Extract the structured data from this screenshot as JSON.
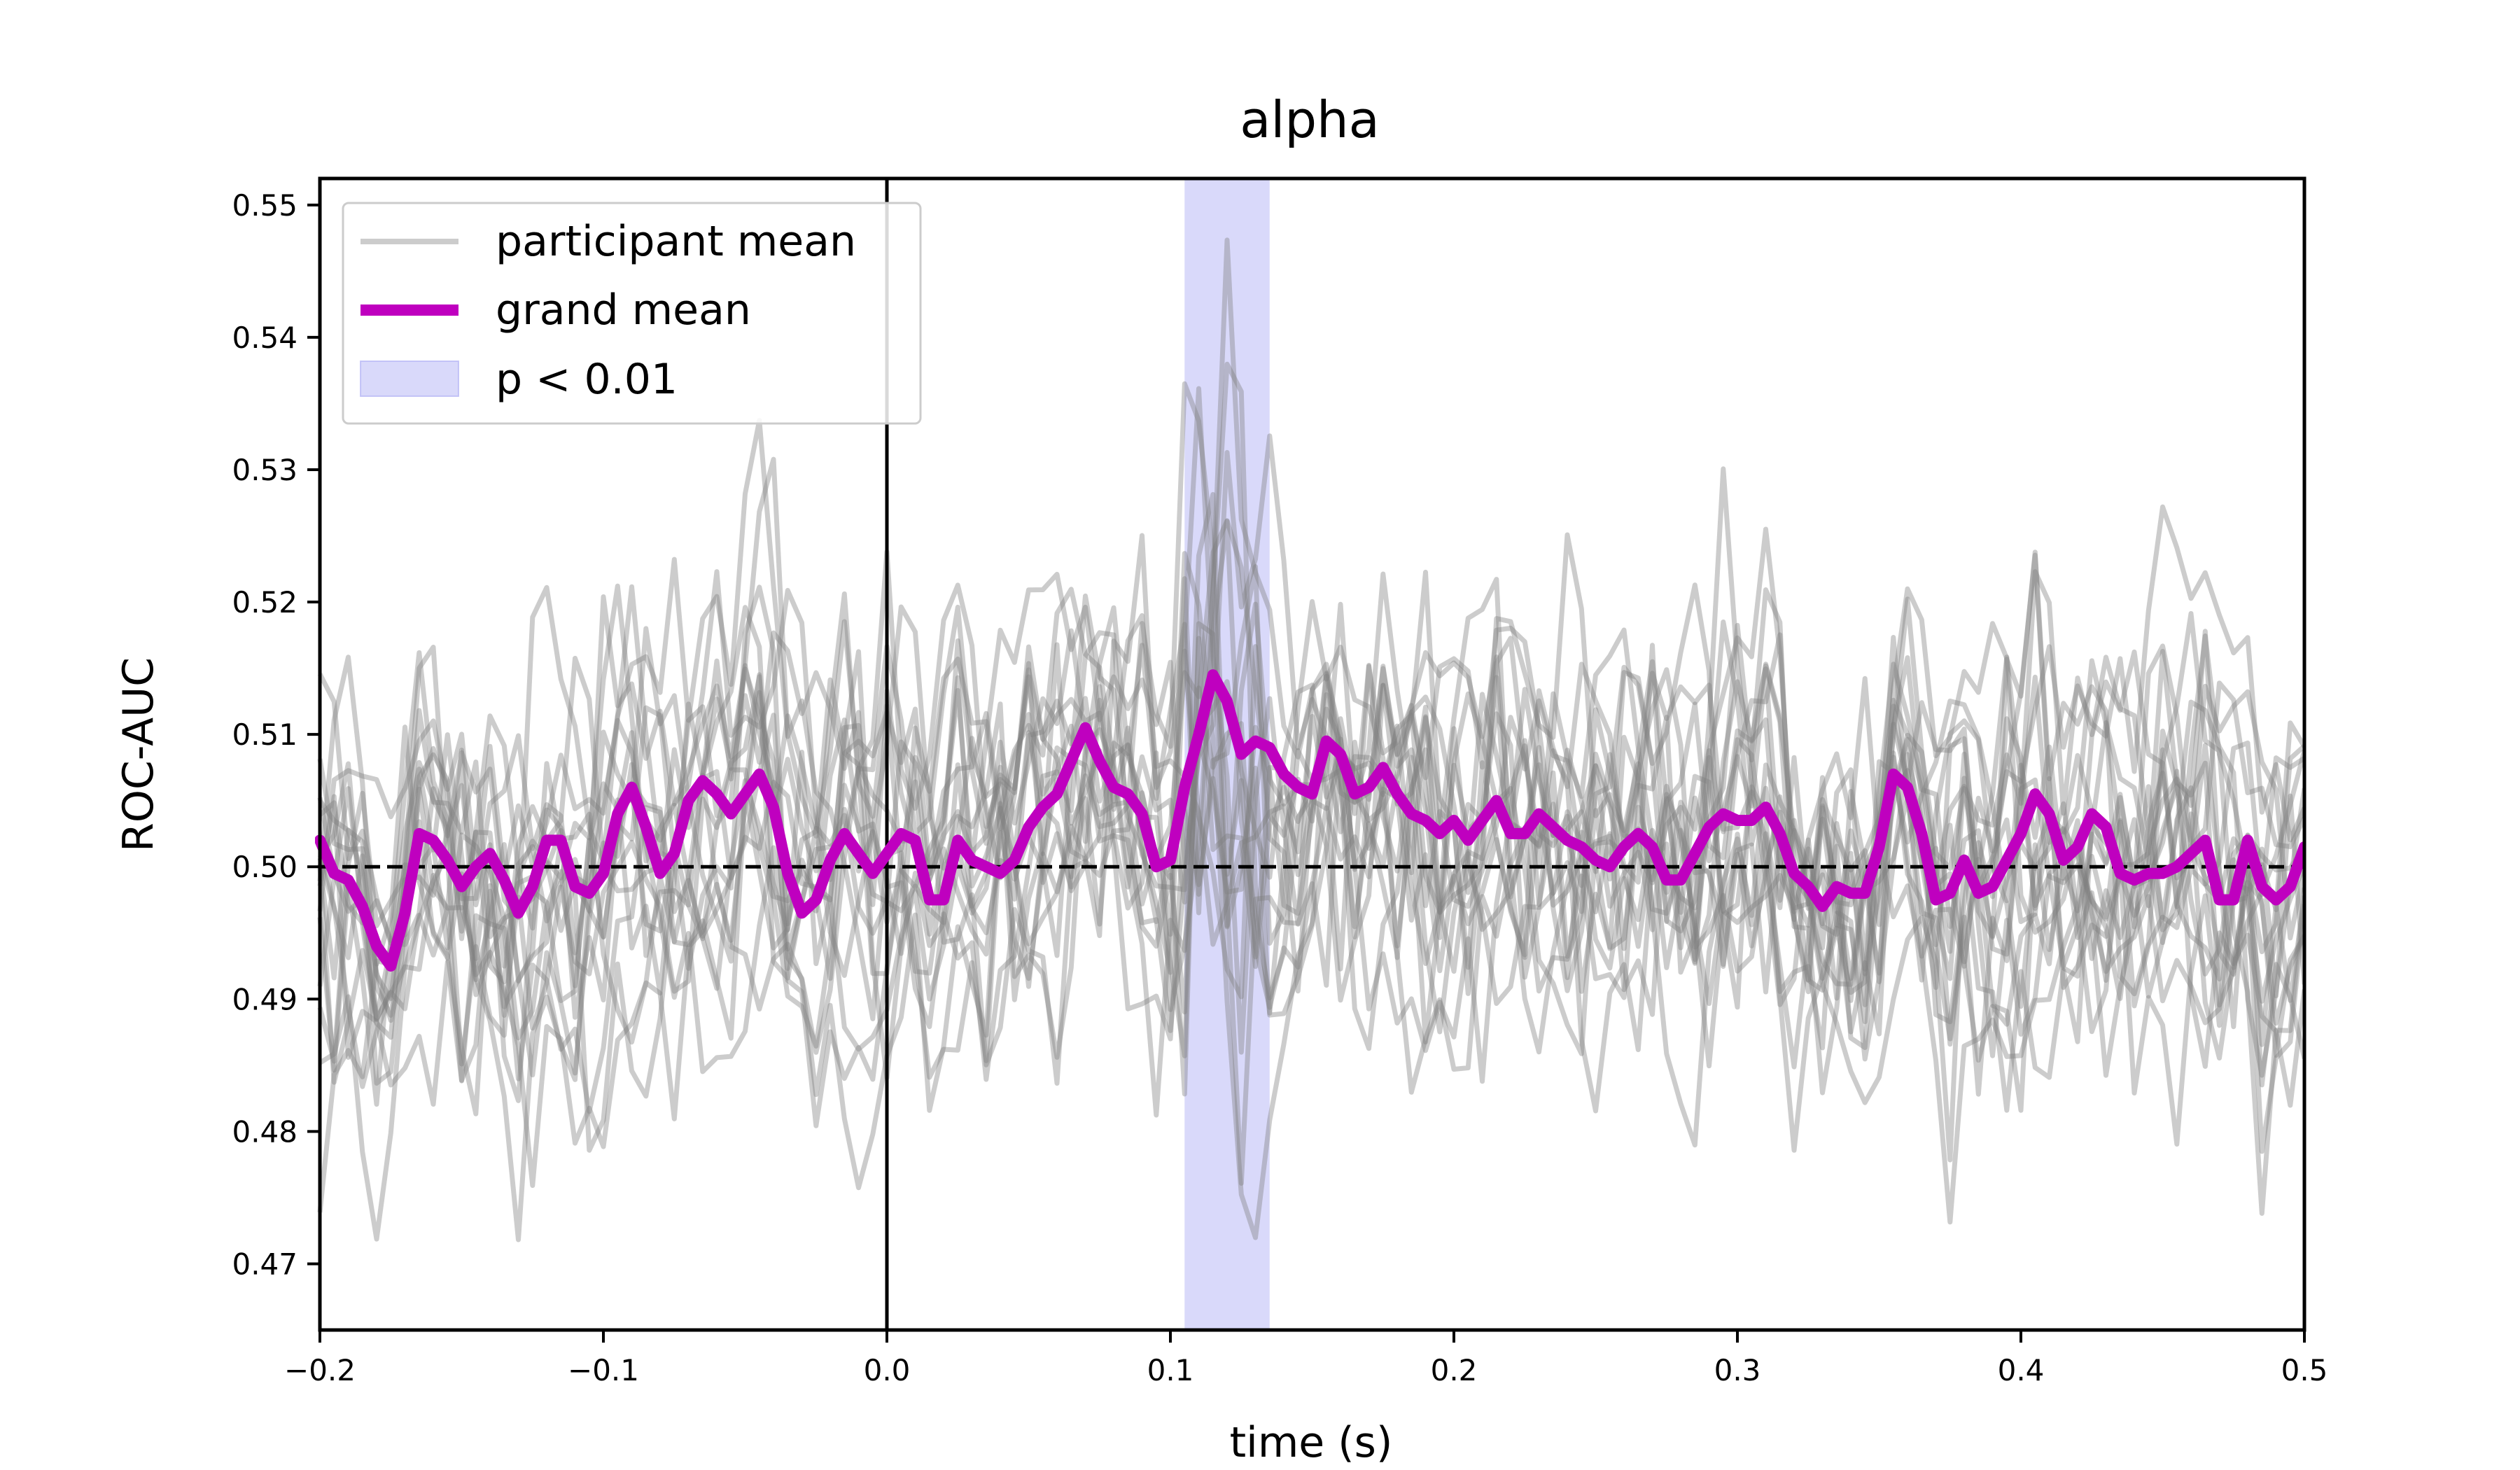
{
  "chart_data": {
    "type": "line",
    "title": "alpha",
    "xlabel": "time (s)",
    "ylabel": "ROC-AUC",
    "xlim": [
      -0.2,
      0.5
    ],
    "ylim": [
      0.465,
      0.552
    ],
    "x_ticks": [
      -0.2,
      -0.1,
      0.0,
      0.1,
      0.2,
      0.3,
      0.4,
      0.5
    ],
    "x_tick_labels": [
      "−0.2",
      "−0.1",
      "0.0",
      "0.1",
      "0.2",
      "0.3",
      "0.4",
      "0.5"
    ],
    "y_ticks": [
      0.47,
      0.48,
      0.49,
      0.5,
      0.51,
      0.52,
      0.53,
      0.54,
      0.55
    ],
    "y_tick_labels": [
      "0.47",
      "0.48",
      "0.49",
      "0.50",
      "0.51",
      "0.52",
      "0.53",
      "0.54",
      "0.55"
    ],
    "chance_level": 0.5,
    "stimulus_onset": 0.0,
    "significant_window": {
      "start": 0.105,
      "end": 0.135,
      "label": "p < 0.01"
    },
    "legend": {
      "location": "upper-left",
      "entries": [
        "participant mean",
        "grand mean",
        "p < 0.01"
      ]
    },
    "colors": {
      "participant": "#808080",
      "grand_mean": "#bf00bf",
      "significance": "#b3b3f5",
      "reference": "#000000"
    },
    "n_participants": 18,
    "grand_mean": {
      "name": "grand mean",
      "points": [
        [
          -0.2,
          0.502
        ],
        [
          -0.195,
          0.4995
        ],
        [
          -0.19,
          0.499
        ],
        [
          -0.185,
          0.497
        ],
        [
          -0.18,
          0.494
        ],
        [
          -0.175,
          0.4925
        ],
        [
          -0.17,
          0.4965
        ],
        [
          -0.165,
          0.5025
        ],
        [
          -0.16,
          0.502
        ],
        [
          -0.155,
          0.5005
        ],
        [
          -0.15,
          0.4985
        ],
        [
          -0.145,
          0.5
        ],
        [
          -0.14,
          0.501
        ],
        [
          -0.135,
          0.499
        ],
        [
          -0.13,
          0.4965
        ],
        [
          -0.125,
          0.4985
        ],
        [
          -0.12,
          0.502
        ],
        [
          -0.115,
          0.502
        ],
        [
          -0.11,
          0.4985
        ],
        [
          -0.105,
          0.498
        ],
        [
          -0.1,
          0.4995
        ],
        [
          -0.095,
          0.504
        ],
        [
          -0.09,
          0.506
        ],
        [
          -0.085,
          0.503
        ],
        [
          -0.08,
          0.4995
        ],
        [
          -0.075,
          0.501
        ],
        [
          -0.07,
          0.505
        ],
        [
          -0.065,
          0.5065
        ],
        [
          -0.06,
          0.5055
        ],
        [
          -0.055,
          0.504
        ],
        [
          -0.05,
          0.5055
        ],
        [
          -0.045,
          0.507
        ],
        [
          -0.04,
          0.5045
        ],
        [
          -0.035,
          0.4995
        ],
        [
          -0.03,
          0.4965
        ],
        [
          -0.025,
          0.4975
        ],
        [
          -0.02,
          0.5005
        ],
        [
          -0.015,
          0.5025
        ],
        [
          -0.01,
          0.501
        ],
        [
          -0.005,
          0.4995
        ],
        [
          0.0,
          0.501
        ],
        [
          0.005,
          0.5025
        ],
        [
          0.01,
          0.502
        ],
        [
          0.015,
          0.4975
        ],
        [
          0.02,
          0.4975
        ],
        [
          0.025,
          0.502
        ],
        [
          0.03,
          0.5005
        ],
        [
          0.035,
          0.5
        ],
        [
          0.04,
          0.4995
        ],
        [
          0.045,
          0.5005
        ],
        [
          0.05,
          0.503
        ],
        [
          0.055,
          0.5045
        ],
        [
          0.06,
          0.5055
        ],
        [
          0.065,
          0.508
        ],
        [
          0.07,
          0.5105
        ],
        [
          0.075,
          0.508
        ],
        [
          0.08,
          0.506
        ],
        [
          0.085,
          0.5055
        ],
        [
          0.09,
          0.504
        ],
        [
          0.095,
          0.5
        ],
        [
          0.1,
          0.5005
        ],
        [
          0.105,
          0.506
        ],
        [
          0.11,
          0.51
        ],
        [
          0.115,
          0.5145
        ],
        [
          0.12,
          0.5125
        ],
        [
          0.125,
          0.5085
        ],
        [
          0.13,
          0.5095
        ],
        [
          0.135,
          0.509
        ],
        [
          0.14,
          0.507
        ],
        [
          0.145,
          0.506
        ],
        [
          0.15,
          0.5055
        ],
        [
          0.155,
          0.5095
        ],
        [
          0.16,
          0.5085
        ],
        [
          0.165,
          0.5055
        ],
        [
          0.17,
          0.506
        ],
        [
          0.175,
          0.5075
        ],
        [
          0.18,
          0.5055
        ],
        [
          0.185,
          0.504
        ],
        [
          0.19,
          0.5035
        ],
        [
          0.195,
          0.5025
        ],
        [
          0.2,
          0.5035
        ],
        [
          0.205,
          0.502
        ],
        [
          0.21,
          0.5035
        ],
        [
          0.215,
          0.505
        ],
        [
          0.22,
          0.5025
        ],
        [
          0.225,
          0.5025
        ],
        [
          0.23,
          0.504
        ],
        [
          0.235,
          0.503
        ],
        [
          0.24,
          0.502
        ],
        [
          0.245,
          0.5015
        ],
        [
          0.25,
          0.5005
        ],
        [
          0.255,
          0.5
        ],
        [
          0.26,
          0.5015
        ],
        [
          0.265,
          0.5025
        ],
        [
          0.27,
          0.5015
        ],
        [
          0.275,
          0.499
        ],
        [
          0.28,
          0.499
        ],
        [
          0.285,
          0.501
        ],
        [
          0.29,
          0.503
        ],
        [
          0.295,
          0.504
        ],
        [
          0.3,
          0.5035
        ],
        [
          0.305,
          0.5035
        ],
        [
          0.31,
          0.5045
        ],
        [
          0.315,
          0.5025
        ],
        [
          0.32,
          0.4995
        ],
        [
          0.325,
          0.4985
        ],
        [
          0.33,
          0.497
        ],
        [
          0.335,
          0.4985
        ],
        [
          0.34,
          0.498
        ],
        [
          0.345,
          0.498
        ],
        [
          0.35,
          0.5015
        ],
        [
          0.355,
          0.507
        ],
        [
          0.36,
          0.506
        ],
        [
          0.365,
          0.5025
        ],
        [
          0.37,
          0.4975
        ],
        [
          0.375,
          0.498
        ],
        [
          0.38,
          0.5005
        ],
        [
          0.385,
          0.498
        ],
        [
          0.39,
          0.4985
        ],
        [
          0.395,
          0.5005
        ],
        [
          0.4,
          0.5025
        ],
        [
          0.405,
          0.5055
        ],
        [
          0.41,
          0.504
        ],
        [
          0.415,
          0.5005
        ],
        [
          0.42,
          0.5015
        ],
        [
          0.425,
          0.504
        ],
        [
          0.43,
          0.503
        ],
        [
          0.435,
          0.4995
        ],
        [
          0.44,
          0.499
        ],
        [
          0.445,
          0.4995
        ],
        [
          0.45,
          0.4995
        ],
        [
          0.455,
          0.5
        ],
        [
          0.46,
          0.501
        ],
        [
          0.465,
          0.502
        ],
        [
          0.47,
          0.4975
        ],
        [
          0.475,
          0.4975
        ],
        [
          0.48,
          0.502
        ],
        [
          0.485,
          0.4985
        ],
        [
          0.49,
          0.4975
        ],
        [
          0.495,
          0.4985
        ],
        [
          0.5,
          0.5015
        ]
      ]
    }
  }
}
